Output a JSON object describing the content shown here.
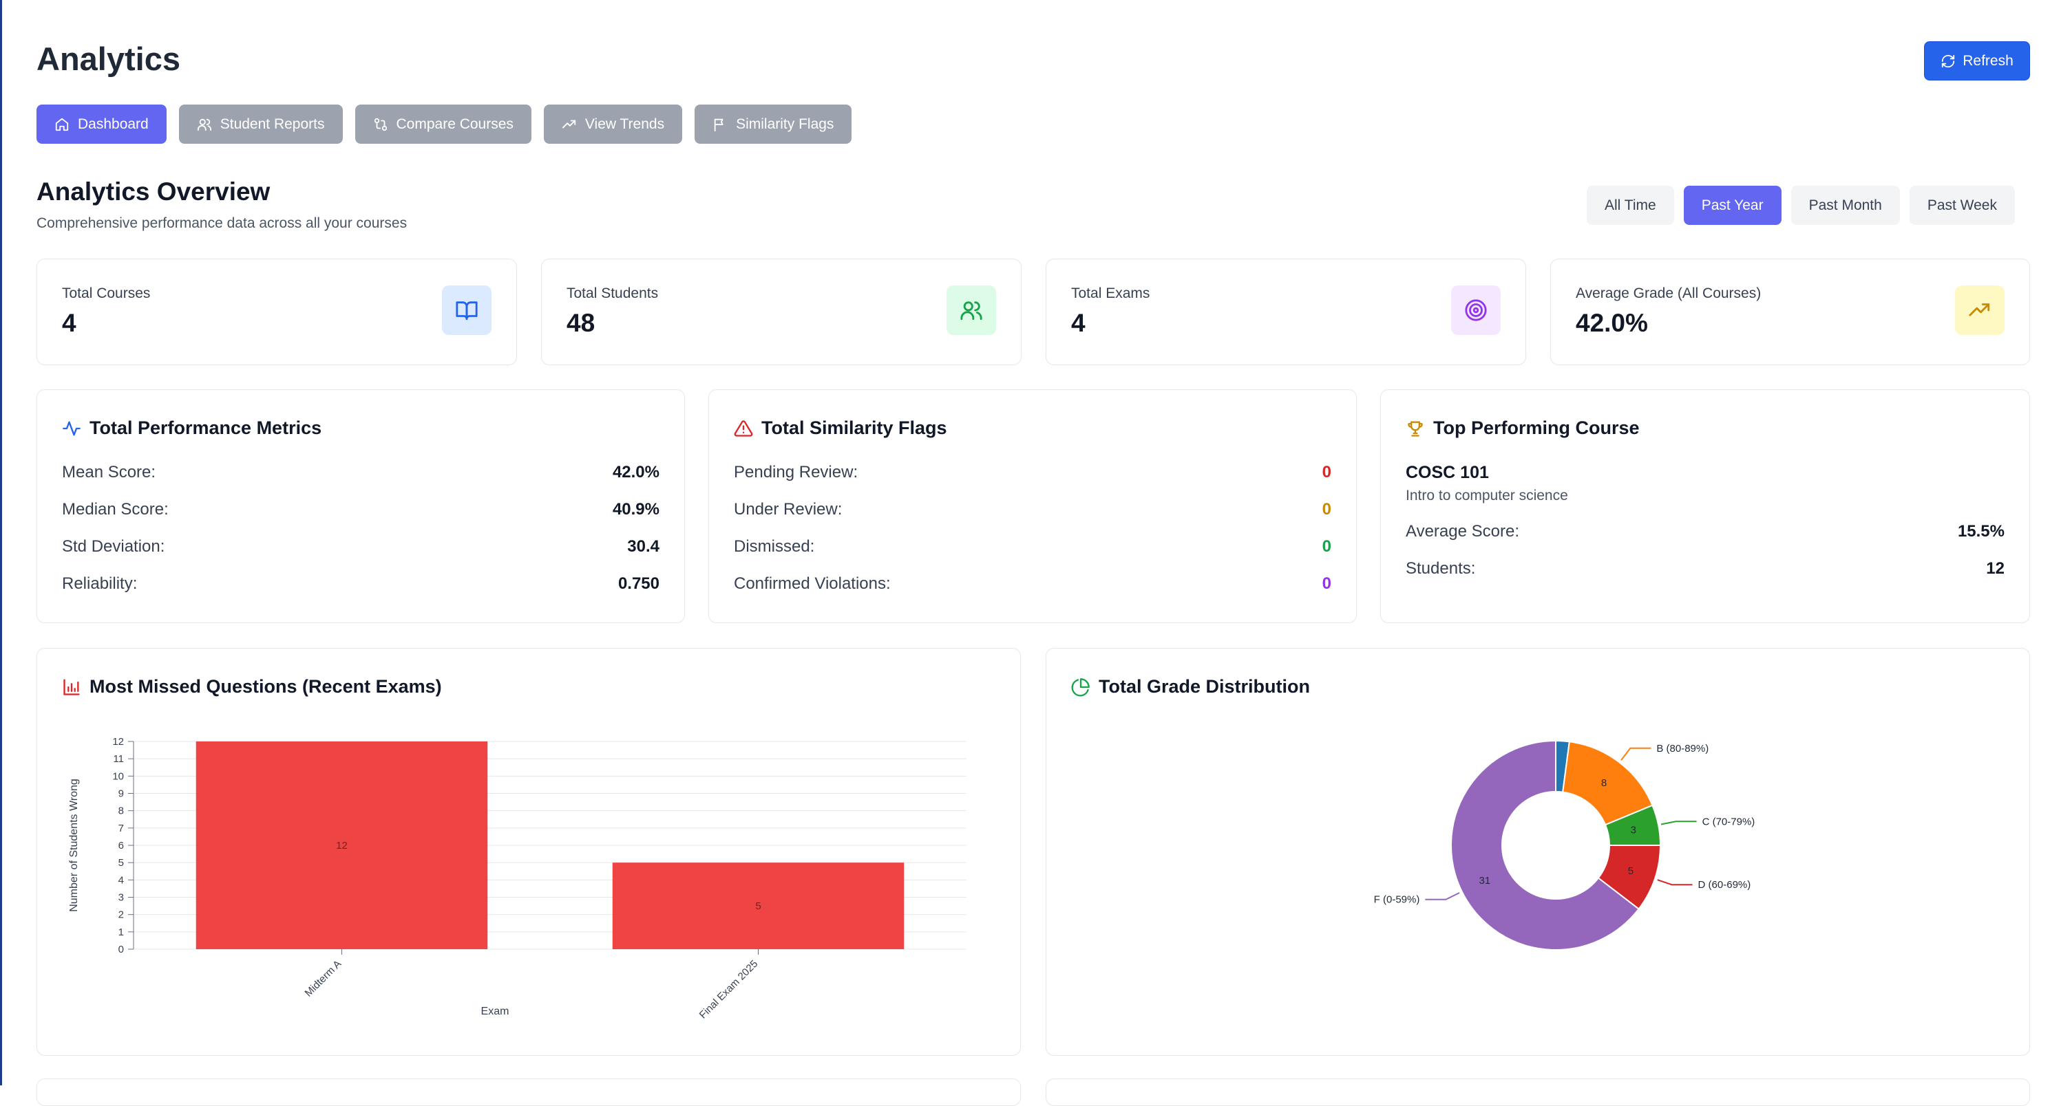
{
  "header": {
    "title": "Analytics",
    "refresh_label": "Refresh"
  },
  "nav": {
    "tabs": [
      {
        "label": "Dashboard",
        "icon": "home-icon"
      },
      {
        "label": "Student Reports",
        "icon": "users-icon"
      },
      {
        "label": "Compare Courses",
        "icon": "compare-icon"
      },
      {
        "label": "View Trends",
        "icon": "trend-icon"
      },
      {
        "label": "Similarity Flags",
        "icon": "flag-icon"
      }
    ],
    "active": "Dashboard"
  },
  "overview": {
    "title": "Analytics Overview",
    "subtitle": "Comprehensive performance data across all your courses",
    "periods": [
      "All Time",
      "Past Year",
      "Past Month",
      "Past Week"
    ],
    "active_period": "Past Year"
  },
  "stats": [
    {
      "label": "Total Courses",
      "value": "4",
      "icon": "book-icon",
      "icon_bg": "#dbeafe",
      "icon_color": "#2563eb"
    },
    {
      "label": "Total Students",
      "value": "48",
      "icon": "users-icon",
      "icon_bg": "#dcfce7",
      "icon_color": "#16a34a"
    },
    {
      "label": "Total Exams",
      "value": "4",
      "icon": "target-icon",
      "icon_bg": "#f3e8ff",
      "icon_color": "#9333ea"
    },
    {
      "label": "Average Grade (All Courses)",
      "value": "42.0%",
      "icon": "trending-up-icon",
      "icon_bg": "#fef9c3",
      "icon_color": "#ca8a04"
    }
  ],
  "performance": {
    "title": "Total Performance Metrics",
    "rows": [
      {
        "label": "Mean Score:",
        "value": "42.0%"
      },
      {
        "label": "Median Score:",
        "value": "40.9%"
      },
      {
        "label": "Std Deviation:",
        "value": "30.4"
      },
      {
        "label": "Reliability:",
        "value": "0.750"
      }
    ]
  },
  "similarity": {
    "title": "Total Similarity Flags",
    "rows": [
      {
        "label": "Pending Review:",
        "value": "0",
        "color": "#dc2626"
      },
      {
        "label": "Under Review:",
        "value": "0",
        "color": "#ca8a04"
      },
      {
        "label": "Dismissed:",
        "value": "0",
        "color": "#16a34a"
      },
      {
        "label": "Confirmed Violations:",
        "value": "0",
        "color": "#9333ea"
      }
    ]
  },
  "top_course": {
    "title": "Top Performing Course",
    "code": "COSC 101",
    "name": "Intro to computer science",
    "rows": [
      {
        "label": "Average Score:",
        "value": "15.5%"
      },
      {
        "label": "Students:",
        "value": "12"
      }
    ]
  },
  "missed_chart": {
    "title": "Most Missed Questions (Recent Exams)"
  },
  "grade_chart": {
    "title": "Total Grade Distribution"
  },
  "chart_data": [
    {
      "type": "bar",
      "categories": [
        "Midterm A",
        "Final Exam 2025"
      ],
      "values": [
        12,
        5
      ],
      "title": "Most Missed Questions (Recent Exams)",
      "xlabel": "Exam",
      "ylabel": "Number of Students Wrong",
      "ylim": [
        0,
        12
      ],
      "yticks": [
        0,
        1,
        2,
        3,
        4,
        5,
        6,
        7,
        8,
        9,
        10,
        11,
        12
      ],
      "grid": true,
      "color": "#ef4444"
    },
    {
      "type": "pie",
      "donut": true,
      "title": "Total Grade Distribution",
      "slices": [
        {
          "label": "",
          "value": 1,
          "color": "#1f77b4"
        },
        {
          "label": "B (80-89%)",
          "value": 8,
          "color": "#ff7f0e"
        },
        {
          "label": "C (70-79%)",
          "value": 3,
          "color": "#2ca02c"
        },
        {
          "label": "D (60-69%)",
          "value": 5,
          "color": "#d62728"
        },
        {
          "label": "F (0-59%)",
          "value": 31,
          "color": "#9467bd"
        }
      ]
    }
  ]
}
